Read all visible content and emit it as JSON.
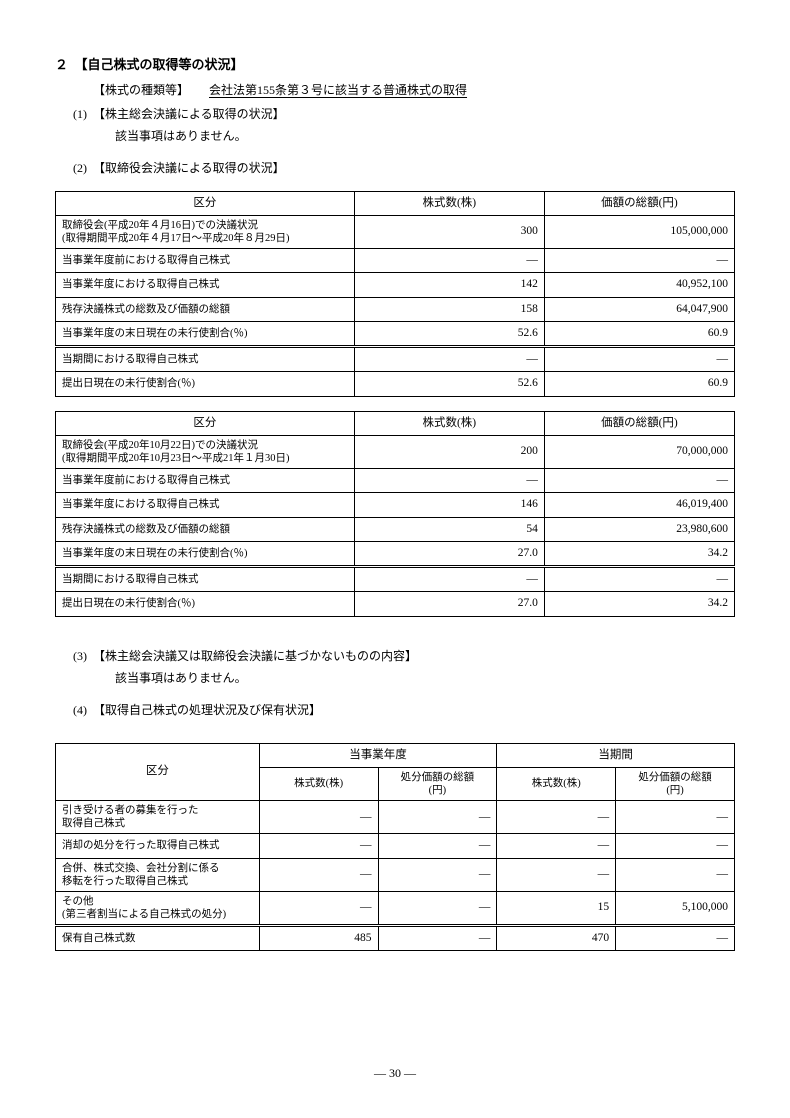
{
  "section2": {
    "number": "２",
    "title": "【自己株式の取得等の状況】",
    "shareType": {
      "label": "【株式の種類等】",
      "value": "会社法第155条第３号に該当する普通株式の取得"
    },
    "sub1": {
      "num": "(1)",
      "title": "【株主総会決議による取得の状況】",
      "body": "該当事項はありません。"
    },
    "sub2": {
      "num": "(2)",
      "title": "【取締役会決議による取得の状況】"
    },
    "tableA": {
      "headers": [
        "区分",
        "株式数(株)",
        "価額の総額(円)"
      ],
      "rows": [
        {
          "label": "取締役会(平成20年４月16日)での決議状況\n(取得期間平成20年４月17日～平成20年８月29日)",
          "c2": "300",
          "c3": "105,000,000"
        },
        {
          "label": "当事業年度前における取得自己株式",
          "c2": "―",
          "c3": "―"
        },
        {
          "label": "当事業年度における取得自己株式",
          "c2": "142",
          "c3": "40,952,100"
        },
        {
          "label": "残存決議株式の総数及び価額の総額",
          "c2": "158",
          "c3": "64,047,900"
        },
        {
          "label": "当事業年度の末日現在の未行使割合(％)",
          "c2": "52.6",
          "c3": "60.9"
        },
        {
          "label": "当期間における取得自己株式",
          "c2": "―",
          "c3": "―",
          "doubleTop": true
        },
        {
          "label": "提出日現在の未行使割合(％)",
          "c2": "52.6",
          "c3": "60.9"
        }
      ]
    },
    "tableB": {
      "headers": [
        "区分",
        "株式数(株)",
        "価額の総額(円)"
      ],
      "rows": [
        {
          "label": "取締役会(平成20年10月22日)での決議状況\n(取得期間平成20年10月23日～平成21年１月30日)",
          "c2": "200",
          "c3": "70,000,000"
        },
        {
          "label": "当事業年度前における取得自己株式",
          "c2": "―",
          "c3": "―"
        },
        {
          "label": "当事業年度における取得自己株式",
          "c2": "146",
          "c3": "46,019,400"
        },
        {
          "label": "残存決議株式の総数及び価額の総額",
          "c2": "54",
          "c3": "23,980,600"
        },
        {
          "label": "当事業年度の末日現在の未行使割合(％)",
          "c2": "27.0",
          "c3": "34.2"
        },
        {
          "label": "当期間における取得自己株式",
          "c2": "―",
          "c3": "―",
          "doubleTop": true
        },
        {
          "label": "提出日現在の未行使割合(％)",
          "c2": "27.0",
          "c3": "34.2"
        }
      ]
    },
    "sub3": {
      "num": "(3)",
      "title": "【株主総会決議又は取締役会決議に基づかないものの内容】",
      "body": "該当事項はありません。"
    },
    "sub4": {
      "num": "(4)",
      "title": "【取得自己株式の処理状況及び保有状況】"
    },
    "tableC": {
      "h1": "区分",
      "h2": "当事業年度",
      "h3": "当期間",
      "sub1": "株式数(株)",
      "sub2": "処分価額の総額\n(円)",
      "sub3": "株式数(株)",
      "sub4": "処分価額の総額\n(円)",
      "rows": [
        {
          "label": "引き受ける者の募集を行った\n取得自己株式",
          "v1": "―",
          "v2": "―",
          "v3": "―",
          "v4": "―"
        },
        {
          "label": "消却の処分を行った取得自己株式",
          "v1": "―",
          "v2": "―",
          "v3": "―",
          "v4": "―"
        },
        {
          "label": "合併、株式交換、会社分割に係る\n移転を行った取得自己株式",
          "v1": "―",
          "v2": "―",
          "v3": "―",
          "v4": "―"
        },
        {
          "label": "その他\n(第三者割当による自己株式の処分)",
          "v1": "―",
          "v2": "―",
          "v3": "15",
          "v4": "5,100,000"
        },
        {
          "label": "保有自己株式数",
          "v1": "485",
          "v2": "―",
          "v3": "470",
          "v4": "―",
          "doubleTop": true
        }
      ]
    }
  },
  "pageNumber": "― 30 ―"
}
